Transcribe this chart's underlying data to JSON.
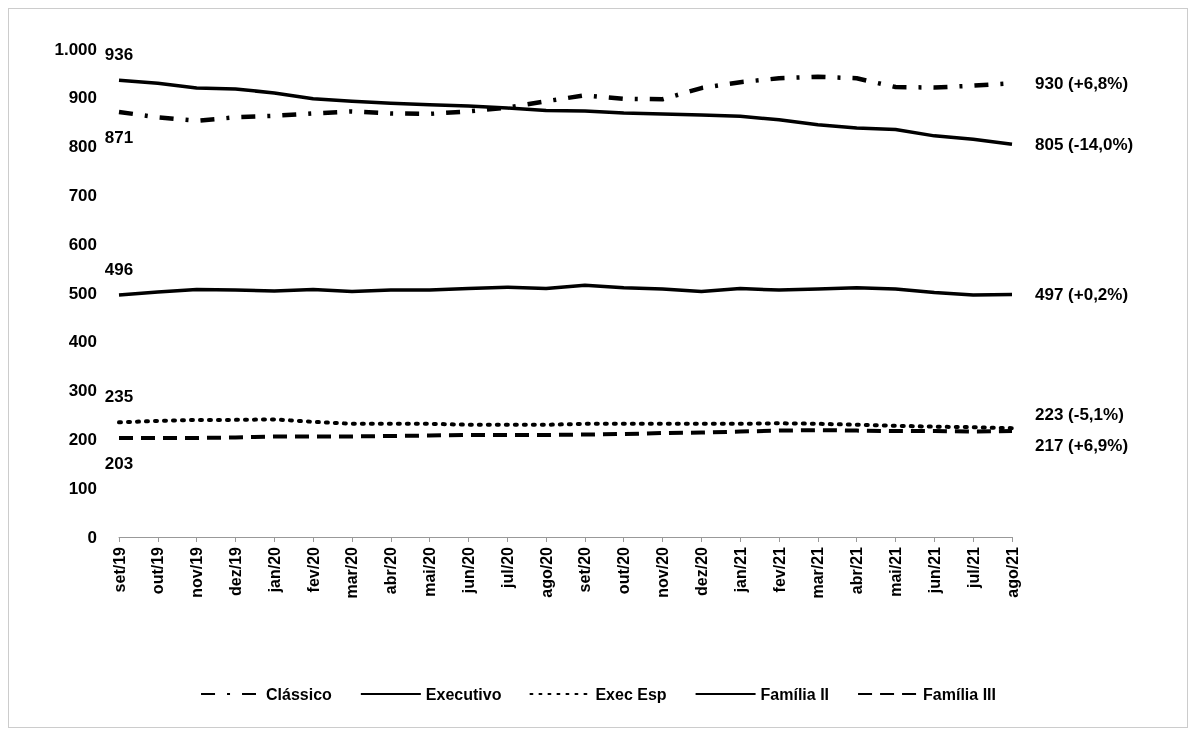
{
  "chart_data": {
    "type": "line",
    "categories": [
      "set/19",
      "out/19",
      "nov/19",
      "dez/19",
      "jan/20",
      "fev/20",
      "mar/20",
      "abr/20",
      "mai/20",
      "jun/20",
      "jul/20",
      "ago/20",
      "set/20",
      "out/20",
      "nov/20",
      "dez/20",
      "jan/21",
      "fev/21",
      "mar/21",
      "abr/21",
      "mai/21",
      "jun/21",
      "jul/21",
      "ago/21"
    ],
    "series": [
      {
        "name": "Clássico",
        "color": "#000000",
        "line_style": "dashdot",
        "values": [
          871,
          860,
          853,
          860,
          863,
          868,
          872,
          868,
          867,
          872,
          880,
          893,
          905,
          898,
          897,
          920,
          932,
          940,
          943,
          940,
          922,
          921,
          925,
          930
        ],
        "value_labels": [
          "871",
          null,
          null,
          null,
          null,
          null,
          null,
          null,
          null,
          null,
          null,
          null,
          null,
          null,
          null,
          null,
          null,
          null,
          null,
          null,
          null,
          null,
          null,
          "930 (+6,8%)"
        ]
      },
      {
        "name": "Executivo",
        "color": "#000000",
        "line_style": "solid",
        "values": [
          936,
          930,
          920,
          918,
          910,
          898,
          893,
          889,
          886,
          883,
          879,
          874,
          873,
          869,
          867,
          865,
          862,
          855,
          845,
          838,
          835,
          822,
          815,
          805
        ],
        "value_labels": [
          "936",
          null,
          null,
          null,
          null,
          null,
          null,
          null,
          null,
          null,
          null,
          null,
          null,
          null,
          null,
          null,
          null,
          null,
          null,
          null,
          null,
          null,
          null,
          "805 (-14,0%)"
        ]
      },
      {
        "name": "Exec Esp",
        "color": "#000000",
        "line_style": "dotted",
        "values": [
          235,
          238,
          240,
          240,
          241,
          236,
          232,
          232,
          232,
          230,
          230,
          230,
          232,
          232,
          232,
          232,
          232,
          233,
          232,
          230,
          228,
          226,
          225,
          223
        ],
        "value_labels": [
          "235",
          null,
          null,
          null,
          null,
          null,
          null,
          null,
          null,
          null,
          null,
          null,
          null,
          null,
          null,
          null,
          null,
          null,
          null,
          null,
          null,
          null,
          null,
          "223 (-5,1%)"
        ]
      },
      {
        "name": "Família II",
        "color": "#000000",
        "line_style": "solid",
        "values": [
          496,
          502,
          507,
          506,
          504,
          507,
          503,
          506,
          506,
          509,
          512,
          509,
          516,
          511,
          508,
          503,
          509,
          506,
          508,
          511,
          508,
          501,
          496,
          497
        ],
        "value_labels": [
          "496",
          null,
          null,
          null,
          null,
          null,
          null,
          null,
          null,
          null,
          null,
          null,
          null,
          null,
          null,
          null,
          null,
          null,
          null,
          null,
          null,
          null,
          null,
          "497 (+0,2%)"
        ]
      },
      {
        "name": "Família III",
        "color": "#000000",
        "line_style": "dashed",
        "values": [
          203,
          203,
          203,
          204,
          206,
          206,
          206,
          207,
          208,
          209,
          209,
          209,
          210,
          211,
          213,
          214,
          216,
          218,
          219,
          218,
          217,
          217,
          216,
          217
        ],
        "value_labels": [
          "203",
          null,
          null,
          null,
          null,
          null,
          null,
          null,
          null,
          null,
          null,
          null,
          null,
          null,
          null,
          null,
          null,
          null,
          null,
          null,
          null,
          null,
          null,
          "217 (+6,9%)"
        ]
      }
    ],
    "ylim": [
      0,
      1000
    ],
    "yticks": [
      0,
      100,
      200,
      300,
      400,
      500,
      600,
      700,
      800,
      900,
      {
        "value": 1000,
        "label": "1.000"
      }
    ],
    "grid": false,
    "legend": "bottom",
    "marker": "none"
  }
}
